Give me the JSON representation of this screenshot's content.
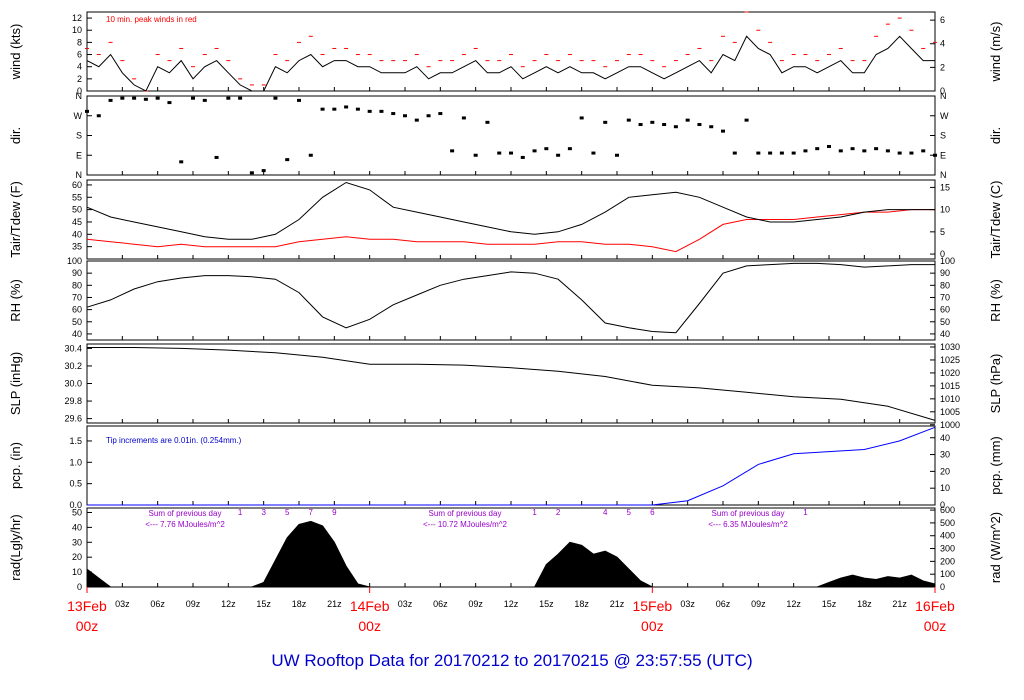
{
  "title": "UW Rooftop Data for 20170212  to  20170215 @ 23:57:55  (UTC)",
  "colors": {
    "black": "#000000",
    "red": "#ff0000",
    "blue": "#0000ff",
    "purple": "#9900cc",
    "title_blue": "#0000cc"
  },
  "time_axis": {
    "hour_ticks": [
      "03z",
      "06z",
      "09z",
      "12z",
      "15z",
      "18z",
      "21z",
      "03z",
      "06z",
      "09z",
      "12z",
      "15z",
      "18z",
      "21z",
      "03z",
      "06z",
      "09z",
      "12z",
      "15z",
      "18z",
      "21z"
    ],
    "hour_positions": [
      3,
      6,
      9,
      12,
      15,
      18,
      21,
      27,
      30,
      33,
      36,
      39,
      42,
      45,
      51,
      54,
      57,
      60,
      63,
      66,
      69
    ],
    "date_labels": [
      {
        "date": "13Feb",
        "time": "00z",
        "hour": 0
      },
      {
        "date": "14Feb",
        "time": "00z",
        "hour": 24
      },
      {
        "date": "15Feb",
        "time": "00z",
        "hour": 48
      },
      {
        "date": "16Feb",
        "time": "00z",
        "hour": 72
      }
    ]
  },
  "chart_data": [
    {
      "type": "line",
      "name": "wind",
      "ylabel": "wind (kts)",
      "ylabel_right": "wind (m/s)",
      "ylim": [
        0,
        13
      ],
      "ticks": [
        0,
        2,
        4,
        6,
        8,
        10,
        12
      ],
      "right_ylim_ms": [
        0,
        6.7
      ],
      "right_ticks": [
        0,
        2,
        4,
        6
      ],
      "annotation": "10 min. peak winds in red",
      "series": [
        {
          "name": "wind speed",
          "color": "#000000",
          "x": [
            0,
            1,
            2,
            3,
            4,
            5,
            6,
            7,
            8,
            9,
            10,
            11,
            12,
            13,
            14,
            15,
            16,
            17,
            18,
            19,
            20,
            21,
            22,
            23,
            24,
            25,
            26,
            27,
            28,
            29,
            30,
            31,
            32,
            33,
            34,
            35,
            36,
            37,
            38,
            39,
            40,
            41,
            42,
            43,
            44,
            45,
            46,
            47,
            48,
            49,
            50,
            51,
            52,
            53,
            54,
            55,
            56,
            57,
            58,
            59,
            60,
            61,
            62,
            63,
            64,
            65,
            66,
            67,
            68,
            69,
            70,
            71,
            72
          ],
          "values": [
            5,
            4,
            6,
            3,
            1,
            0,
            4,
            3,
            5,
            2,
            4,
            5,
            3,
            1,
            0,
            0,
            4,
            3,
            5,
            6,
            4,
            5,
            5,
            4,
            4,
            3,
            3,
            3,
            4,
            2,
            3,
            3,
            4,
            5,
            3,
            3,
            4,
            2,
            3,
            4,
            3,
            4,
            3,
            3,
            2,
            3,
            4,
            4,
            3,
            2,
            3,
            4,
            5,
            3,
            6,
            5,
            9,
            7,
            6,
            3,
            4,
            4,
            3,
            4,
            5,
            3,
            3,
            6,
            7,
            9,
            7,
            5,
            5
          ]
        },
        {
          "name": "10 min peak",
          "color": "#ff0000",
          "x": [
            0,
            1,
            2,
            3,
            4,
            5,
            6,
            7,
            8,
            9,
            10,
            11,
            12,
            13,
            14,
            15,
            16,
            17,
            18,
            19,
            20,
            21,
            22,
            23,
            24,
            25,
            26,
            27,
            28,
            29,
            30,
            31,
            32,
            33,
            34,
            35,
            36,
            37,
            38,
            39,
            40,
            41,
            42,
            43,
            44,
            45,
            46,
            47,
            48,
            49,
            50,
            51,
            52,
            53,
            54,
            55,
            56,
            57,
            58,
            59,
            60,
            61,
            62,
            63,
            64,
            65,
            66,
            67,
            68,
            69,
            70,
            71,
            72
          ],
          "values": [
            7,
            6,
            8,
            5,
            2,
            0,
            6,
            5,
            7,
            4,
            6,
            7,
            5,
            2,
            1,
            1,
            6,
            5,
            8,
            9,
            6,
            7,
            7,
            6,
            6,
            5,
            5,
            5,
            6,
            4,
            5,
            5,
            6,
            7,
            5,
            5,
            6,
            4,
            5,
            6,
            5,
            6,
            5,
            5,
            4,
            5,
            6,
            6,
            5,
            4,
            5,
            6,
            7,
            5,
            9,
            8,
            13,
            10,
            8,
            5,
            6,
            6,
            5,
            6,
            7,
            5,
            5,
            9,
            11,
            12,
            10,
            7,
            8
          ]
        }
      ]
    },
    {
      "type": "scatter",
      "name": "dir",
      "ylabel": "dir.",
      "ylabel_right": "dir.",
      "tick_labels": [
        "N",
        "E",
        "S",
        "W",
        "N"
      ],
      "tick_degrees": [
        0,
        90,
        180,
        270,
        360
      ],
      "ylim": [
        0,
        360
      ],
      "x": [
        0,
        1,
        2,
        3,
        4,
        5,
        6,
        7,
        8,
        9,
        10,
        11,
        12,
        13,
        14,
        15,
        16,
        17,
        18,
        19,
        20,
        21,
        22,
        23,
        24,
        25,
        26,
        27,
        28,
        29,
        30,
        31,
        32,
        33,
        34,
        35,
        36,
        37,
        38,
        39,
        40,
        41,
        42,
        43,
        44,
        45,
        46,
        47,
        48,
        49,
        50,
        51,
        52,
        53,
        54,
        55,
        56,
        57,
        58,
        59,
        60,
        61,
        62,
        63,
        64,
        65,
        66,
        67,
        68,
        69,
        70,
        71,
        72
      ],
      "values": [
        290,
        270,
        340,
        350,
        350,
        345,
        350,
        330,
        60,
        350,
        340,
        80,
        350,
        350,
        10,
        20,
        350,
        70,
        340,
        90,
        300,
        300,
        310,
        300,
        290,
        290,
        280,
        270,
        250,
        270,
        280,
        110,
        260,
        90,
        240,
        100,
        100,
        80,
        110,
        120,
        90,
        120,
        260,
        100,
        240,
        90,
        250,
        230,
        240,
        230,
        220,
        250,
        230,
        220,
        200,
        100,
        250,
        100,
        100,
        100,
        100,
        110,
        120,
        130,
        110,
        120,
        110,
        120,
        110,
        100,
        100,
        110,
        90
      ]
    },
    {
      "type": "line",
      "name": "temp",
      "ylabel": "Tair/Tdew (F)",
      "ylabel_right": "Tair/Tdew (C)",
      "ylim": [
        30,
        62
      ],
      "ticks": [
        35,
        40,
        45,
        50,
        55,
        60
      ],
      "right_ticks_c": [
        0,
        5,
        10,
        15
      ],
      "series": [
        {
          "name": "Tair",
          "color": "#000000",
          "x": [
            0,
            2,
            4,
            6,
            8,
            10,
            12,
            14,
            16,
            18,
            20,
            22,
            24,
            26,
            28,
            30,
            32,
            34,
            36,
            38,
            40,
            42,
            44,
            46,
            48,
            50,
            52,
            54,
            56,
            58,
            60,
            62,
            64,
            66,
            68,
            70,
            72
          ],
          "values": [
            51,
            47,
            45,
            43,
            41,
            39,
            38,
            38,
            40,
            46,
            55,
            61,
            58,
            51,
            49,
            47,
            45,
            43,
            41,
            40,
            41,
            44,
            49,
            55,
            56,
            57,
            55,
            51,
            47,
            45,
            45,
            46,
            47,
            49,
            50,
            50,
            50
          ]
        },
        {
          "name": "Tdew",
          "color": "#ff0000",
          "x": [
            0,
            2,
            4,
            6,
            8,
            10,
            12,
            14,
            16,
            18,
            20,
            22,
            24,
            26,
            28,
            30,
            32,
            34,
            36,
            38,
            40,
            42,
            44,
            46,
            48,
            50,
            52,
            54,
            56,
            58,
            60,
            62,
            64,
            66,
            68,
            70,
            72
          ],
          "values": [
            38,
            37,
            36,
            35,
            36,
            35,
            35,
            35,
            35,
            37,
            38,
            39,
            38,
            38,
            37,
            37,
            37,
            36,
            36,
            36,
            37,
            37,
            36,
            36,
            35,
            33,
            38,
            44,
            46,
            46,
            46,
            47,
            48,
            49,
            49,
            50,
            50
          ]
        }
      ]
    },
    {
      "type": "line",
      "name": "rh",
      "ylabel": "RH (%)",
      "ylabel_right": "RH (%)",
      "ylim": [
        35,
        100
      ],
      "ticks": [
        40,
        50,
        60,
        70,
        80,
        90,
        100
      ],
      "series": [
        {
          "name": "RH",
          "color": "#000000",
          "x": [
            0,
            2,
            4,
            6,
            8,
            10,
            12,
            14,
            16,
            18,
            20,
            22,
            24,
            26,
            28,
            30,
            32,
            34,
            36,
            38,
            40,
            42,
            44,
            46,
            48,
            50,
            52,
            54,
            56,
            58,
            60,
            62,
            64,
            66,
            68,
            70,
            72
          ],
          "values": [
            62,
            68,
            77,
            83,
            86,
            88,
            88,
            87,
            85,
            74,
            54,
            45,
            52,
            64,
            72,
            80,
            85,
            88,
            91,
            90,
            85,
            68,
            49,
            45,
            42,
            41,
            65,
            90,
            96,
            97,
            98,
            98,
            97,
            95,
            96,
            97,
            97
          ]
        }
      ]
    },
    {
      "type": "line",
      "name": "slp",
      "ylabel": "SLP (inHg)",
      "ylabel_right": "SLP (hPa)",
      "ylim": [
        29.55,
        30.45
      ],
      "ticks": [
        29.6,
        29.8,
        30.0,
        30.2,
        30.4
      ],
      "right_ticks_hpa": [
        1000,
        1005,
        1010,
        1015,
        1020,
        1025,
        1030
      ],
      "series": [
        {
          "name": "SLP",
          "color": "#000000",
          "x": [
            0,
            4,
            8,
            12,
            16,
            20,
            24,
            28,
            32,
            36,
            40,
            44,
            48,
            52,
            56,
            60,
            64,
            68,
            72
          ],
          "values": [
            30.41,
            30.41,
            30.4,
            30.38,
            30.35,
            30.3,
            30.22,
            30.22,
            30.21,
            30.18,
            30.14,
            30.08,
            29.98,
            29.95,
            29.9,
            29.85,
            29.82,
            29.74,
            29.58
          ]
        }
      ]
    },
    {
      "type": "line",
      "name": "pcp",
      "ylabel": "pcp. (in)",
      "ylabel_right": "pcp. (mm)",
      "ylim": [
        0,
        1.85
      ],
      "ticks": [
        0.0,
        0.5,
        1.0,
        1.5
      ],
      "right_ticks_mm": [
        0,
        10,
        20,
        30,
        40
      ],
      "annotation": "Tip increments are 0.01in. (0.254mm.)",
      "series": [
        {
          "name": "precip",
          "color": "#0000ff",
          "x": [
            0,
            48,
            51,
            54,
            57,
            60,
            63,
            66,
            69,
            72
          ],
          "values": [
            0,
            0,
            0.1,
            0.45,
            0.95,
            1.2,
            1.25,
            1.3,
            1.5,
            1.82
          ]
        }
      ]
    },
    {
      "type": "area",
      "name": "rad",
      "ylabel": "rad(Lgly/hr)",
      "ylabel_right": "rad (W/m^2)",
      "ylim": [
        0,
        53
      ],
      "ticks": [
        0,
        10,
        20,
        30,
        40,
        50
      ],
      "right_ticks_wm2": [
        0,
        100,
        200,
        300,
        400,
        500,
        600
      ],
      "hour_marks": [
        {
          "text": "1",
          "hour": 13
        },
        {
          "text": "3",
          "hour": 15
        },
        {
          "text": "5",
          "hour": 17
        },
        {
          "text": "7",
          "hour": 19
        },
        {
          "text": "9",
          "hour": 21
        },
        {
          "text": "1",
          "hour": 38
        },
        {
          "text": "2",
          "hour": 40
        },
        {
          "text": "4",
          "hour": 44
        },
        {
          "text": "5",
          "hour": 46
        },
        {
          "text": "6",
          "hour": 48
        },
        {
          "text": "1",
          "hour": 61
        }
      ],
      "annotations": [
        {
          "line1": "Sum of previous day",
          "line2": "<--- 7.76 MJoules/m^2"
        },
        {
          "line1": "Sum of previous day",
          "line2": "<--- 10.72 MJoules/m^2"
        },
        {
          "line1": "Sum of previous day",
          "line2": "<--- 6.35 MJoules/m^2"
        }
      ],
      "series": [
        {
          "name": "radiation",
          "color": "#000000",
          "x": [
            0,
            1,
            2,
            14,
            15,
            16,
            17,
            18,
            19,
            20,
            21,
            22,
            23,
            24,
            38,
            39,
            40,
            41,
            42,
            43,
            44,
            45,
            46,
            47,
            48,
            62,
            63,
            64,
            65,
            66,
            67,
            68,
            69,
            70,
            71,
            72
          ],
          "values": [
            12,
            6,
            0,
            0,
            3,
            18,
            33,
            42,
            44,
            41,
            30,
            14,
            2,
            0,
            0,
            15,
            22,
            30,
            28,
            22,
            24,
            20,
            12,
            4,
            0,
            0,
            3,
            6,
            8,
            6,
            5,
            7,
            6,
            8,
            4,
            2
          ]
        }
      ]
    }
  ]
}
